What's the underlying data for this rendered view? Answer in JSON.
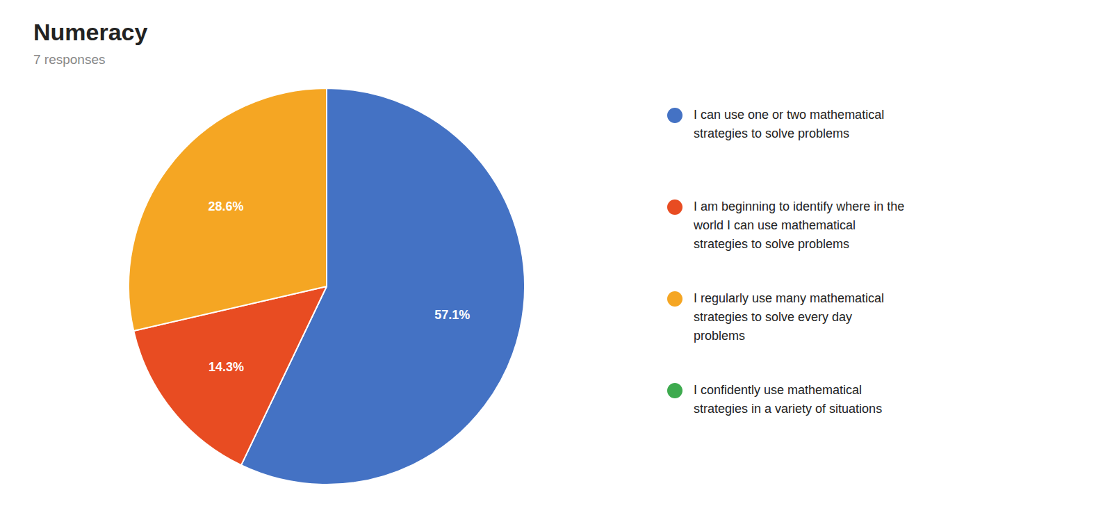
{
  "chart_data": {
    "type": "pie",
    "title": "Numeracy",
    "subtitle": "7 responses",
    "categories": [
      "I can use one or two mathematical\nstrategies to solve problems",
      "I am beginning to identify where in the\nworld I can use mathematical\nstrategies to solve problems",
      "I regularly use many mathematical\nstrategies to solve every day\nproblems",
      "I confidently use mathematical\nstrategies in a variety of situations"
    ],
    "values": [
      57.1,
      14.3,
      28.6,
      0.0
    ],
    "value_labels": [
      "57.1%",
      "14.3%",
      "28.6%",
      null
    ],
    "colors": [
      "#4472C4",
      "#E84C22",
      "#F5A623",
      "#3DAA4E"
    ],
    "data_labels": true,
    "legend": "right"
  }
}
